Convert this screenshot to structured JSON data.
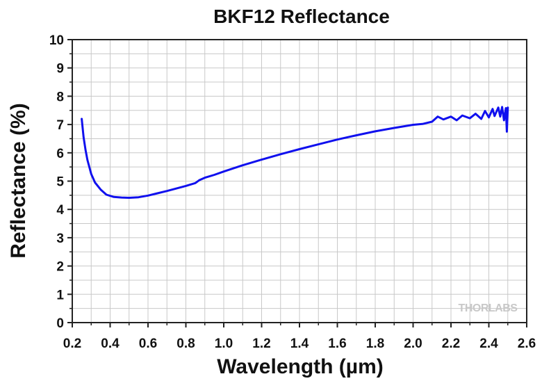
{
  "chart_data": {
    "type": "line",
    "title": "BKF12 Reflectance",
    "xlabel": "Wavelength (µm)",
    "ylabel": "Reflectance (%)",
    "xlim": [
      0.2,
      2.6
    ],
    "ylim": [
      0,
      10
    ],
    "x_ticks": [
      "0.2",
      "0.4",
      "0.6",
      "0.8",
      "1.0",
      "1.2",
      "1.4",
      "1.6",
      "1.8",
      "2.0",
      "2.2",
      "2.4",
      "2.6"
    ],
    "y_ticks": [
      "0",
      "1",
      "2",
      "3",
      "4",
      "5",
      "6",
      "7",
      "8",
      "9",
      "10"
    ],
    "grid": true,
    "series": [
      {
        "color": "#1010ee",
        "points": [
          [
            0.25,
            7.2
          ],
          [
            0.26,
            6.55
          ],
          [
            0.27,
            6.1
          ],
          [
            0.28,
            5.75
          ],
          [
            0.3,
            5.25
          ],
          [
            0.32,
            4.95
          ],
          [
            0.35,
            4.7
          ],
          [
            0.38,
            4.52
          ],
          [
            0.42,
            4.44
          ],
          [
            0.46,
            4.42
          ],
          [
            0.5,
            4.41
          ],
          [
            0.55,
            4.43
          ],
          [
            0.6,
            4.49
          ],
          [
            0.65,
            4.57
          ],
          [
            0.7,
            4.65
          ],
          [
            0.75,
            4.74
          ],
          [
            0.8,
            4.83
          ],
          [
            0.85,
            4.93
          ],
          [
            0.87,
            5.03
          ],
          [
            0.9,
            5.12
          ],
          [
            0.95,
            5.22
          ],
          [
            1.0,
            5.34
          ],
          [
            1.05,
            5.45
          ],
          [
            1.1,
            5.56
          ],
          [
            1.2,
            5.76
          ],
          [
            1.3,
            5.95
          ],
          [
            1.4,
            6.13
          ],
          [
            1.5,
            6.3
          ],
          [
            1.6,
            6.47
          ],
          [
            1.7,
            6.62
          ],
          [
            1.8,
            6.76
          ],
          [
            1.9,
            6.88
          ],
          [
            2.0,
            6.99
          ],
          [
            2.05,
            7.02
          ],
          [
            2.1,
            7.1
          ],
          [
            2.13,
            7.28
          ],
          [
            2.16,
            7.18
          ],
          [
            2.2,
            7.28
          ],
          [
            2.23,
            7.15
          ],
          [
            2.26,
            7.32
          ],
          [
            2.3,
            7.22
          ],
          [
            2.33,
            7.38
          ],
          [
            2.36,
            7.2
          ],
          [
            2.38,
            7.48
          ],
          [
            2.4,
            7.25
          ],
          [
            2.42,
            7.55
          ],
          [
            2.43,
            7.3
          ],
          [
            2.45,
            7.6
          ],
          [
            2.46,
            7.28
          ],
          [
            2.47,
            7.62
          ],
          [
            2.48,
            7.15
          ],
          [
            2.49,
            7.58
          ],
          [
            2.495,
            6.75
          ],
          [
            2.5,
            7.6
          ]
        ]
      }
    ]
  },
  "watermark": {
    "text": "THORLABS"
  }
}
